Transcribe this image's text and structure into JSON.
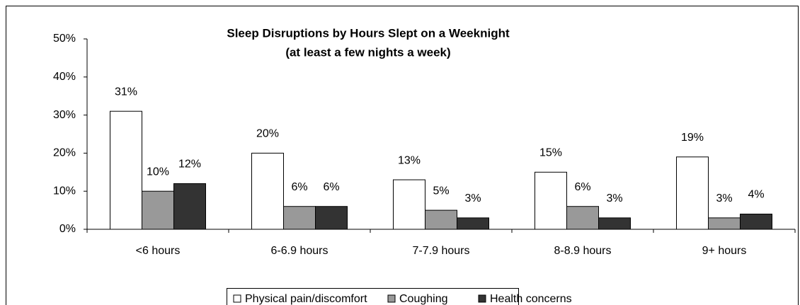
{
  "chart_data": {
    "type": "bar",
    "title": "Sleep Disruptions by Hours Slept on a Weeknight",
    "subtitle": "(at least a few nights a week)",
    "categories": [
      "<6 hours",
      "6-6.9 hours",
      "7-7.9 hours",
      "8-8.9 hours",
      "9+ hours"
    ],
    "series": [
      {
        "name": "Physical pain/discomfort",
        "color": "#ffffff",
        "values": [
          31,
          20,
          13,
          15,
          19
        ],
        "value_labels": [
          "31%",
          "20%",
          "13%",
          "15%",
          "19%"
        ]
      },
      {
        "name": "Coughing",
        "color": "#999999",
        "values": [
          10,
          6,
          5,
          6,
          3
        ],
        "value_labels": [
          "10%",
          "6%",
          "5%",
          "6%",
          "3%"
        ]
      },
      {
        "name": "Health concerns",
        "color": "#333333",
        "values": [
          12,
          6,
          3,
          3,
          4
        ],
        "value_labels": [
          "12%",
          "6%",
          "3%",
          "3%",
          "4%"
        ]
      }
    ],
    "ylim": [
      0,
      50
    ],
    "yticks": [
      {
        "value": 0,
        "label": "0%"
      },
      {
        "value": 10,
        "label": "10%"
      },
      {
        "value": 20,
        "label": "20%"
      },
      {
        "value": 30,
        "label": "30%"
      },
      {
        "value": 40,
        "label": "40%"
      },
      {
        "value": 50,
        "label": "50%"
      }
    ],
    "grid": false,
    "legend": "bottom"
  }
}
